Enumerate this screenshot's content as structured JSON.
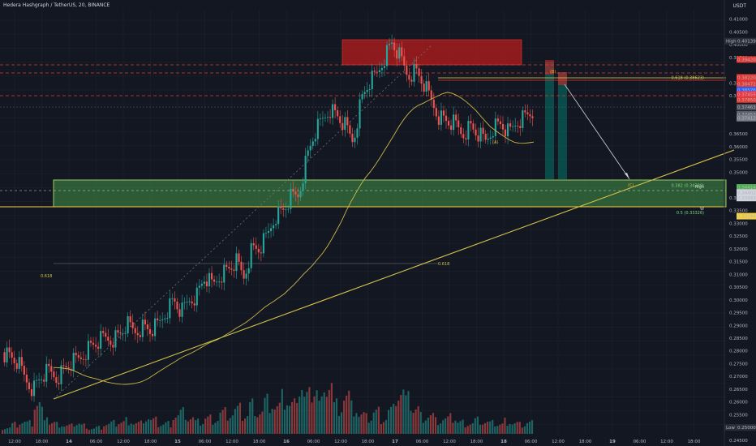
{
  "header": {
    "title": "Hedera Hashgraph / TetherUS, 20, BINANCE",
    "currency": "USDT"
  },
  "colors": {
    "background": "#131722",
    "grid": "#1e222d",
    "up": "#26a69a",
    "down": "#ef5350",
    "ma": "#c9b84a",
    "trend": "#d4c24a",
    "supply_zone": "#b71c1c",
    "demand_zone": "#4caf50",
    "red_line": "#e53935",
    "projection": "#d1d4dc"
  },
  "chart_data": {
    "type": "candlestick",
    "symbol": "HBAR/USDT",
    "timeframe": "20",
    "exchange": "BINANCE",
    "ylim": [
      0.2475,
      0.4137
    ],
    "y_ticks": [
      "0.41000",
      "0.40500",
      "0.40000",
      "0.39500",
      "0.38500",
      "0.38000",
      "0.36500",
      "0.36000",
      "0.35500",
      "0.35000",
      "0.34000",
      "0.33500",
      "0.33000",
      "0.32500",
      "0.32000",
      "0.31500",
      "0.31000",
      "0.30500",
      "0.30000",
      "0.29500",
      "0.29000",
      "0.28500",
      "0.28000",
      "0.27500",
      "0.27000",
      "0.26500",
      "0.26000",
      "0.25500",
      "0.24500"
    ],
    "x_ticks": [
      "12:00",
      "18:00",
      "14",
      "06:00",
      "12:00",
      "18:00",
      "15",
      "06:00",
      "12:00",
      "18:00",
      "16",
      "06:00",
      "12:00",
      "18:00",
      "17",
      "06:00",
      "12:00",
      "18:00",
      "18",
      "06:00",
      "12:00",
      "18:00",
      "19",
      "06:00",
      "12:00",
      "18:00"
    ],
    "price_path": [
      0.2795,
      0.278,
      0.2755,
      0.269,
      0.265,
      0.27,
      0.272,
      0.2695,
      0.273,
      0.2755,
      0.277,
      0.281,
      0.283,
      0.285,
      0.2845,
      0.286,
      0.2905,
      0.2875,
      0.2895,
      0.288,
      0.29,
      0.2955,
      0.3,
      0.295,
      0.3,
      0.302,
      0.309,
      0.3055,
      0.31,
      0.312,
      0.315,
      0.309,
      0.32,
      0.32,
      0.325,
      0.333,
      0.335,
      0.34,
      0.341,
      0.355,
      0.365,
      0.37,
      0.375,
      0.372,
      0.368,
      0.362,
      0.378,
      0.385,
      0.388,
      0.395,
      0.401,
      0.395,
      0.388,
      0.39,
      0.385,
      0.378,
      0.372,
      0.37,
      0.369,
      0.365,
      0.368,
      0.365,
      0.362,
      0.368,
      0.369,
      0.365,
      0.37,
      0.372,
      0.374
    ],
    "volume_profile": [
      0.12,
      0.18,
      0.22,
      0.2,
      0.55,
      0.42,
      0.2,
      0.18,
      0.15,
      0.2,
      0.16,
      0.1,
      0.12,
      0.18,
      0.2,
      0.22,
      0.26,
      0.2,
      0.3,
      0.25,
      0.18,
      0.2,
      0.35,
      0.4,
      0.3,
      0.22,
      0.3,
      0.28,
      0.4,
      0.38,
      0.45,
      0.35,
      0.55,
      0.42,
      0.6,
      0.5,
      0.65,
      0.55,
      0.95,
      0.7,
      0.9,
      0.6,
      1.0,
      0.55,
      0.72,
      0.5,
      0.35,
      0.3,
      0.42,
      0.3,
      0.45,
      0.8,
      0.62,
      0.48,
      0.34,
      0.35,
      0.25,
      0.28,
      0.3,
      0.22,
      0.2,
      0.26,
      0.22,
      0.2,
      0.18,
      0.25,
      0.2,
      0.18,
      0.22
    ],
    "price_labels": [
      {
        "text": "High",
        "value": "0.40139",
        "y": 0.4014,
        "bg": "#2a2e39",
        "fg": "#d1d4dc"
      },
      {
        "text": "",
        "value": "0.39420",
        "y": 0.3942,
        "bg": "#e53935",
        "fg": "#ffffff"
      },
      {
        "text": "",
        "value": "0.38220",
        "y": 0.3872,
        "bg": "#e53935",
        "fg": "#ffffff"
      },
      {
        "text": "",
        "value": "0.38472",
        "y": 0.3847,
        "bg": "#e53935",
        "fg": "#ffffff"
      },
      {
        "text": "",
        "value": "0.38576",
        "y": 0.3822,
        "bg": "#2962ff",
        "fg": "#ffffff"
      },
      {
        "text": "",
        "value": "0.37455",
        "y": 0.3805,
        "bg": "#f23645",
        "fg": "#ffffff"
      },
      {
        "text": "",
        "value": "0.37850",
        "y": 0.3785,
        "bg": "#e53935",
        "fg": "#ffffff"
      },
      {
        "text": "",
        "value": "0.37463",
        "y": 0.3755,
        "bg": "#4a4e5a",
        "fg": "#ffffff"
      },
      {
        "text": "",
        "value": "0.37453",
        "y": 0.3727,
        "bg": "#5d606b",
        "fg": "#ffffff"
      },
      {
        "text": "",
        "value": "0.37412",
        "y": 0.3712,
        "bg": "#787b86",
        "fg": "#ffffff"
      },
      {
        "text": "",
        "value": "0.34414",
        "y": 0.3441,
        "bg": "#4caf50",
        "fg": "#131722"
      },
      {
        "text": "",
        "value": "0.34402",
        "y": 0.3421,
        "bg": "#d1d4dc",
        "fg": "#131722"
      },
      {
        "text": "",
        "value": "0.33993",
        "y": 0.3399,
        "bg": "#d1d4dc",
        "fg": "#131722"
      },
      {
        "text": "",
        "value": "0.33284",
        "y": 0.3328,
        "bg": "#f5d142",
        "fg": "#131722"
      },
      {
        "text": "Low",
        "value": "0.25000",
        "y": 0.25,
        "bg": "#2a2e39",
        "fg": "#d1d4dc"
      }
    ],
    "fib_labels": [
      {
        "text": "0.618 (0.38623)",
        "y": 0.38623,
        "color": "#d4c24a"
      },
      {
        "text": "0.382 (0.34388)",
        "y": 0.34388,
        "color": "#7cd67c"
      },
      {
        "text": "0.5 (0.33326)",
        "y": 0.33326,
        "color": "#7cd67c"
      },
      {
        "text": "0.618",
        "y": 0.3085,
        "color": "#d4c24a"
      }
    ],
    "wave_labels": [
      "(A)",
      "(B)",
      "(C)"
    ],
    "side_labels": [
      "High",
      "W"
    ]
  }
}
